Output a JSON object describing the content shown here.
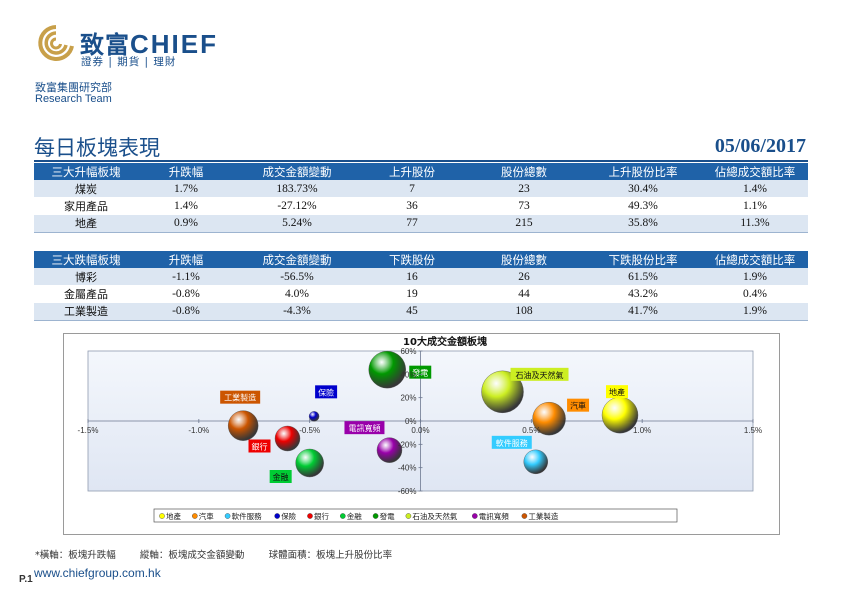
{
  "logo": {
    "brand_cn": "致富",
    "brand_en": "CHIEF",
    "tagline": "證券 | 期貨 | 理財"
  },
  "department": {
    "cn": "致富集團研究部",
    "en": "Research Team"
  },
  "title": "每日板塊表現",
  "date": "05/06/2017",
  "top_gainers": {
    "headers": [
      "三大升幅板塊",
      "升跌幅",
      "成交金額變動",
      "上升股份",
      "股份總數",
      "上升股份比率",
      "佔總成交額比率"
    ],
    "rows": [
      [
        "煤炭",
        "1.7%",
        "183.73%",
        "7",
        "23",
        "30.4%",
        "1.4%"
      ],
      [
        "家用產品",
        "1.4%",
        "-27.12%",
        "36",
        "73",
        "49.3%",
        "1.1%"
      ],
      [
        "地產",
        "0.9%",
        "5.24%",
        "77",
        "215",
        "35.8%",
        "11.3%"
      ]
    ]
  },
  "top_losers": {
    "headers": [
      "三大跌幅板塊",
      "升跌幅",
      "成交金額變動",
      "下跌股份",
      "股份總數",
      "下跌股份比率",
      "佔總成交額比率"
    ],
    "rows": [
      [
        "博彩",
        "-1.1%",
        "-56.5%",
        "16",
        "26",
        "61.5%",
        "1.9%"
      ],
      [
        "金屬產品",
        "-0.8%",
        "4.0%",
        "19",
        "44",
        "43.2%",
        "0.4%"
      ],
      [
        "工業製造",
        "-0.8%",
        "-4.3%",
        "45",
        "108",
        "41.7%",
        "1.9%"
      ]
    ]
  },
  "chart_data": {
    "type": "scatter",
    "title": "10大成交金額板塊",
    "xlabel": "板塊升跌幅",
    "ylabel": "板塊成交金額變動",
    "xlim": [
      -1.5,
      1.5
    ],
    "ylim": [
      -60,
      60
    ],
    "x_ticks": [
      "-1.5%",
      "-1.0%",
      "-0.5%",
      "0.0%",
      "0.5%",
      "1.0%",
      "1.5%"
    ],
    "y_ticks": [
      "-60%",
      "-40%",
      "-20%",
      "0%",
      "20%",
      "40%",
      "60%"
    ],
    "series": [
      {
        "name": "地產",
        "x": 0.9,
        "y": 5,
        "size": 36,
        "color": "#ffff00"
      },
      {
        "name": "汽車",
        "x": 0.58,
        "y": 2,
        "size": 33,
        "color": "#ff8c00"
      },
      {
        "name": "軟件服務",
        "x": 0.52,
        "y": -35,
        "size": 24,
        "color": "#33ccff"
      },
      {
        "name": "保險",
        "x": -0.48,
        "y": 4,
        "size": 10,
        "color": "#0000cc"
      },
      {
        "name": "銀行",
        "x": -0.6,
        "y": -15,
        "size": 25,
        "color": "#ee0000"
      },
      {
        "name": "金融",
        "x": -0.5,
        "y": -36,
        "size": 28,
        "color": "#00cc33"
      },
      {
        "name": "發電",
        "x": -0.15,
        "y": 44,
        "size": 37,
        "color": "#009900"
      },
      {
        "name": "石油及天然氣",
        "x": 0.37,
        "y": 25,
        "size": 42,
        "color": "#ccee22"
      },
      {
        "name": "電訊寬頻",
        "x": -0.14,
        "y": -25,
        "size": 25,
        "color": "#9900aa"
      },
      {
        "name": "工業製造",
        "x": -0.8,
        "y": -4,
        "size": 30,
        "color": "#cc5500"
      }
    ]
  },
  "footnote": "*橫軸：板塊升跌幅        縱軸：板塊成交金額變動        球體面積：板塊上升股份比率",
  "page_number": "P.1",
  "website": "www.chiefgroup.com.hk"
}
